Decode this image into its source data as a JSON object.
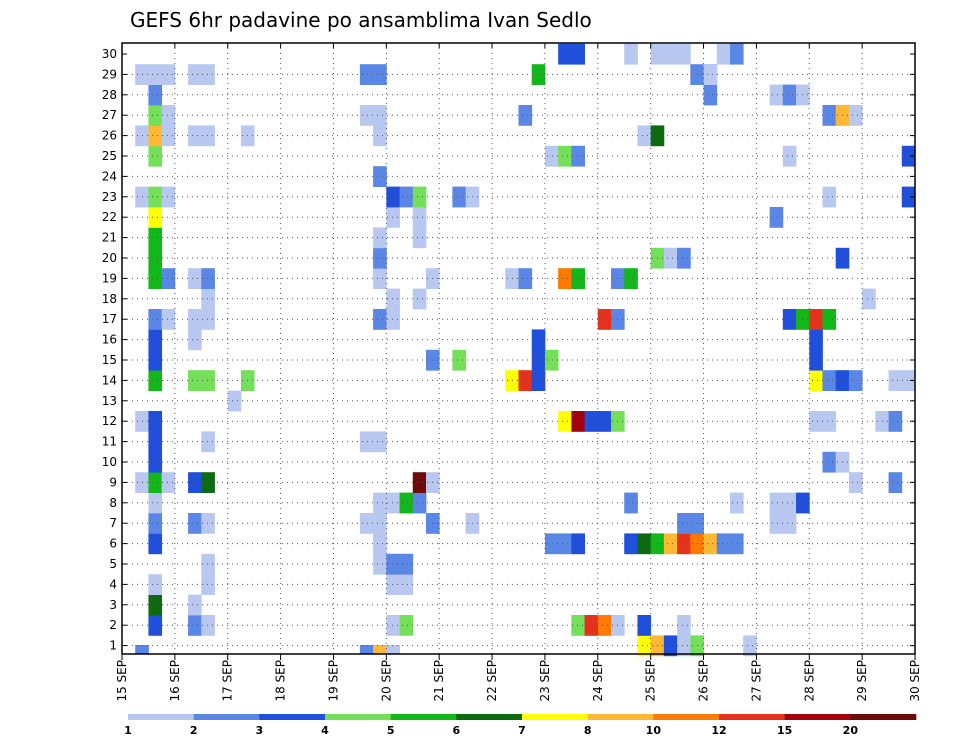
{
  "chart_data": {
    "type": "heatmap",
    "title": "GEFS 6hr padavine po ansamblima Ivan Sedlo",
    "x_tick_labels": [
      "15 SEP",
      "16 SEP",
      "17 SEP",
      "18 SEP",
      "19 SEP",
      "20 SEP",
      "21 SEP",
      "22 SEP",
      "23 SEP",
      "24 SEP",
      "25 SEP",
      "26 SEP",
      "27 SEP",
      "28 SEP",
      "29 SEP",
      "30 SEP"
    ],
    "y_tick_labels": [
      "1",
      "2",
      "3",
      "4",
      "5",
      "6",
      "7",
      "8",
      "9",
      "10",
      "11",
      "12",
      "13",
      "14",
      "15",
      "16",
      "17",
      "18",
      "19",
      "20",
      "21",
      "22",
      "23",
      "24",
      "25",
      "26",
      "27",
      "28",
      "29",
      "30"
    ],
    "legend_labels": [
      "1",
      "2",
      "3",
      "4",
      "5",
      "6",
      "7",
      "8",
      "10",
      "12",
      "15",
      "20"
    ],
    "legend_colors": [
      "#b8c8f0",
      "#5a86e6",
      "#1f4fdb",
      "#74e05a",
      "#12b81a",
      "#0e6a10",
      "#ffff00",
      "#ffb833",
      "#ff7a00",
      "#e5321c",
      "#a50010",
      "#6e0a0a"
    ],
    "colors": {
      "1": "#b8c8f0",
      "2": "#5a86e6",
      "3": "#1f4fdb",
      "4": "#74e05a",
      "5": "#12b81a",
      "6": "#0e6a10",
      "7": "#ffff00",
      "8": "#ffb833",
      "10": "#ff7a00",
      "12": "#e5321c",
      "15": "#a50010",
      "20": "#6e0a0a"
    },
    "grid": true,
    "rows": {
      "1": [
        [
          39,
          1,
          7
        ],
        [
          40,
          1,
          8
        ],
        [
          41,
          1,
          3
        ],
        [
          42,
          1,
          1
        ],
        [
          43,
          1,
          4
        ],
        [
          47,
          1,
          1
        ]
      ],
      "2": [
        [
          2,
          1,
          3
        ],
        [
          5,
          1,
          2
        ],
        [
          6,
          1,
          1
        ],
        [
          20,
          1,
          1
        ],
        [
          21,
          1,
          4
        ],
        [
          34,
          1,
          4
        ],
        [
          35,
          1,
          12
        ],
        [
          36,
          1,
          10
        ],
        [
          37,
          1,
          1
        ],
        [
          39,
          1,
          3
        ],
        [
          42,
          1,
          1
        ]
      ],
      "3": [
        [
          2,
          1,
          6
        ],
        [
          5,
          1,
          1
        ]
      ],
      "4": [
        [
          2,
          1,
          1
        ],
        [
          6,
          1,
          1
        ],
        [
          20,
          2,
          1
        ]
      ],
      "5": [
        [
          6,
          1,
          1
        ],
        [
          19,
          1,
          1
        ],
        [
          20,
          2,
          2
        ]
      ],
      "6": [
        [
          2,
          1,
          3
        ],
        [
          19,
          1,
          1
        ],
        [
          32,
          2,
          2
        ],
        [
          34,
          1,
          3
        ],
        [
          38,
          1,
          3
        ],
        [
          39,
          1,
          6
        ],
        [
          40,
          1,
          5
        ],
        [
          41,
          1,
          8
        ],
        [
          42,
          1,
          12
        ],
        [
          43,
          1,
          10
        ],
        [
          44,
          1,
          8
        ],
        [
          45,
          2,
          2
        ]
      ],
      "7": [
        [
          2,
          1,
          2
        ],
        [
          5,
          1,
          2
        ],
        [
          6,
          1,
          1
        ],
        [
          18,
          2,
          1
        ],
        [
          23,
          1,
          2
        ],
        [
          26,
          1,
          1
        ],
        [
          42,
          2,
          2
        ],
        [
          49,
          2,
          1
        ]
      ],
      "8": [
        [
          2,
          1,
          1
        ],
        [
          19,
          1,
          1
        ],
        [
          20,
          1,
          1
        ],
        [
          21,
          1,
          5
        ],
        [
          22,
          1,
          2
        ],
        [
          38,
          1,
          2
        ],
        [
          46,
          1,
          1
        ],
        [
          49,
          2,
          1
        ],
        [
          51,
          1,
          3
        ]
      ],
      "9": [
        [
          1,
          1,
          1
        ],
        [
          2,
          1,
          5
        ],
        [
          3,
          1,
          1
        ],
        [
          5,
          1,
          3
        ],
        [
          6,
          1,
          6
        ],
        [
          22,
          1,
          20
        ],
        [
          23,
          1,
          1
        ],
        [
          55,
          1,
          1
        ],
        [
          58,
          1,
          2
        ]
      ],
      "10": [
        [
          2,
          1,
          3
        ],
        [
          53,
          1,
          2
        ],
        [
          54,
          1,
          1
        ]
      ],
      "11": [
        [
          2,
          1,
          3
        ],
        [
          6,
          1,
          1
        ],
        [
          18,
          2,
          1
        ]
      ],
      "12": [
        [
          1,
          1,
          1
        ],
        [
          2,
          1,
          3
        ],
        [
          33,
          1,
          7
        ],
        [
          34,
          1,
          15
        ],
        [
          35,
          2,
          3
        ],
        [
          37,
          1,
          4
        ],
        [
          52,
          2,
          1
        ],
        [
          57,
          1,
          1
        ],
        [
          58,
          1,
          2
        ]
      ],
      "13": [
        [
          8,
          1,
          1
        ]
      ],
      "14": [
        [
          2,
          1,
          5
        ],
        [
          5,
          2,
          4
        ],
        [
          9,
          1,
          4
        ],
        [
          29,
          1,
          7
        ],
        [
          30,
          1,
          12
        ],
        [
          31,
          1,
          3
        ],
        [
          52,
          1,
          7
        ],
        [
          53,
          1,
          2
        ],
        [
          54,
          1,
          3
        ],
        [
          55,
          1,
          2
        ],
        [
          58,
          2,
          1
        ]
      ],
      "15": [
        [
          2,
          1,
          3
        ],
        [
          23,
          1,
          2
        ],
        [
          25,
          1,
          4
        ],
        [
          31,
          1,
          3
        ],
        [
          32,
          1,
          4
        ],
        [
          52,
          1,
          3
        ]
      ],
      "16": [
        [
          2,
          1,
          3
        ],
        [
          5,
          1,
          1
        ],
        [
          31,
          1,
          3
        ],
        [
          52,
          1,
          3
        ]
      ],
      "17": [
        [
          2,
          1,
          2
        ],
        [
          3,
          1,
          1
        ],
        [
          5,
          2,
          1
        ],
        [
          19,
          1,
          2
        ],
        [
          20,
          1,
          1
        ],
        [
          36,
          1,
          12
        ],
        [
          37,
          1,
          2
        ],
        [
          50,
          1,
          3
        ],
        [
          51,
          1,
          5
        ],
        [
          52,
          1,
          12
        ],
        [
          53,
          1,
          5
        ]
      ],
      "18": [
        [
          6,
          1,
          1
        ],
        [
          20,
          1,
          1
        ],
        [
          22,
          1,
          1
        ],
        [
          56,
          1,
          1
        ]
      ],
      "19": [
        [
          2,
          1,
          5
        ],
        [
          3,
          1,
          2
        ],
        [
          5,
          1,
          1
        ],
        [
          6,
          1,
          2
        ],
        [
          19,
          1,
          1
        ],
        [
          23,
          1,
          1
        ],
        [
          29,
          1,
          1
        ],
        [
          30,
          1,
          2
        ],
        [
          33,
          1,
          10
        ],
        [
          34,
          1,
          5
        ],
        [
          37,
          1,
          2
        ],
        [
          38,
          1,
          5
        ]
      ],
      "20": [
        [
          2,
          1,
          5
        ],
        [
          19,
          1,
          2
        ],
        [
          40,
          1,
          4
        ],
        [
          41,
          1,
          1
        ],
        [
          42,
          1,
          2
        ],
        [
          54,
          1,
          3
        ]
      ],
      "21": [
        [
          2,
          1,
          5
        ],
        [
          19,
          1,
          1
        ],
        [
          22,
          1,
          1
        ]
      ],
      "22": [
        [
          2,
          1,
          7
        ],
        [
          20,
          1,
          1
        ],
        [
          22,
          1,
          1
        ],
        [
          49,
          1,
          2
        ]
      ],
      "23": [
        [
          1,
          1,
          1
        ],
        [
          2,
          1,
          4
        ],
        [
          3,
          1,
          1
        ],
        [
          20,
          1,
          3
        ],
        [
          21,
          1,
          2
        ],
        [
          22,
          1,
          4
        ],
        [
          25,
          1,
          2
        ],
        [
          26,
          1,
          1
        ],
        [
          53,
          1,
          1
        ],
        [
          59,
          1,
          3
        ]
      ],
      "24": [
        [
          19,
          1,
          2
        ]
      ],
      "25": [
        [
          2,
          1,
          4
        ],
        [
          32,
          1,
          1
        ],
        [
          33,
          1,
          4
        ],
        [
          34,
          1,
          2
        ],
        [
          50,
          1,
          1
        ],
        [
          59,
          1,
          3
        ]
      ],
      "26": [
        [
          1,
          1,
          1
        ],
        [
          2,
          1,
          8
        ],
        [
          3,
          1,
          1
        ],
        [
          5,
          2,
          1
        ],
        [
          9,
          1,
          1
        ],
        [
          19,
          1,
          1
        ],
        [
          39,
          1,
          1
        ],
        [
          40,
          1,
          6
        ]
      ],
      "27": [
        [
          2,
          1,
          4
        ],
        [
          3,
          1,
          1
        ],
        [
          18,
          2,
          1
        ],
        [
          30,
          1,
          2
        ],
        [
          53,
          1,
          2
        ],
        [
          54,
          1,
          8
        ],
        [
          55,
          1,
          1
        ]
      ],
      "28": [
        [
          2,
          1,
          2
        ],
        [
          44,
          1,
          2
        ],
        [
          49,
          1,
          1
        ],
        [
          50,
          1,
          2
        ],
        [
          51,
          1,
          1
        ]
      ],
      "29": [
        [
          1,
          3,
          1
        ],
        [
          5,
          2,
          1
        ],
        [
          18,
          2,
          2
        ],
        [
          31,
          1,
          5
        ],
        [
          43,
          2,
          2
        ],
        [
          44,
          1,
          1
        ]
      ],
      "30": [
        [
          33,
          2,
          3
        ],
        [
          38,
          1,
          1
        ],
        [
          40,
          3,
          1
        ],
        [
          45,
          1,
          1
        ],
        [
          46,
          1,
          2
        ]
      ]
    },
    "bottom_row": [
      [
        1,
        1,
        2
      ],
      [
        18,
        1,
        2
      ],
      [
        19,
        1,
        8
      ],
      [
        20,
        1,
        1
      ]
    ]
  }
}
